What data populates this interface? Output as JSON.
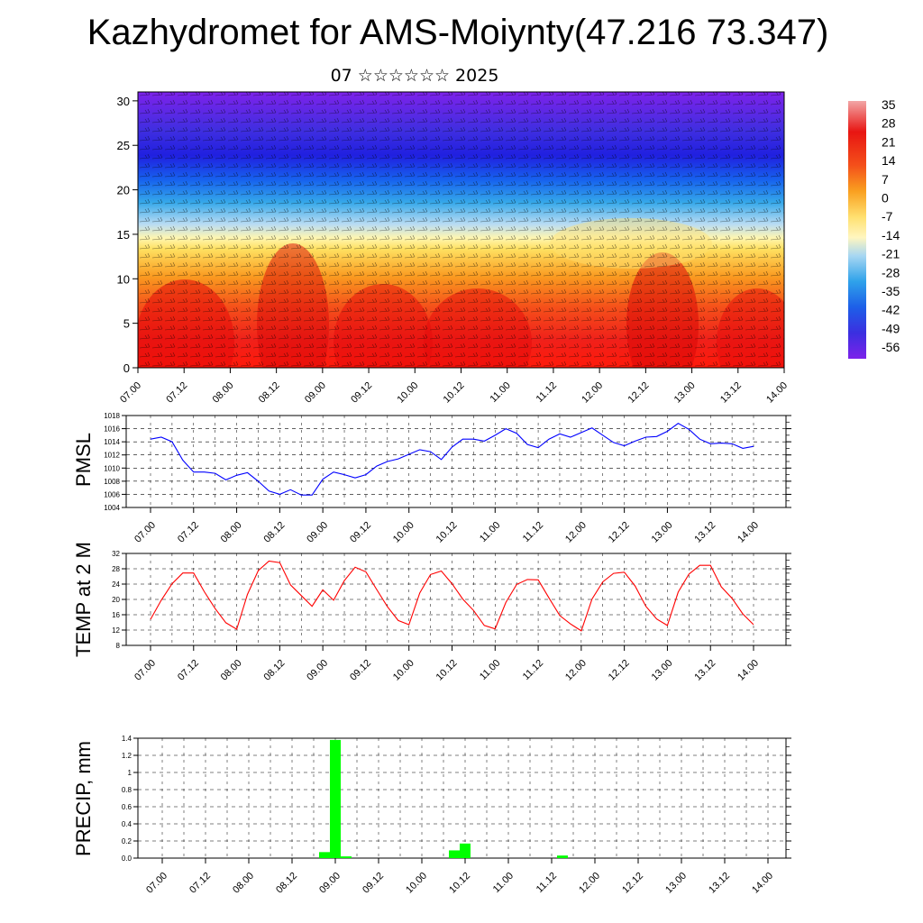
{
  "title": "Kazhydromet for AMS-Moiynty(47.216 73.347)",
  "subtitle": "07 ☆☆☆☆☆☆ 2025",
  "colors": {
    "pmsl_line": "#0000ff",
    "temp_line": "#ff0000",
    "precip_bar": "#00ff00",
    "colorbar_top": "#f2a6a6",
    "colorbar_bottom": "#7d22ea"
  },
  "chart_data": [
    {
      "type": "heatmap",
      "name": "cross-section",
      "xlabel": "",
      "ylabel": "",
      "x_tick_labels": [
        "07.00",
        "07.12",
        "08.00",
        "08.12",
        "09.00",
        "09.12",
        "10.00",
        "10.12",
        "11.00",
        "11.12",
        "12.00",
        "12.12",
        "13.00",
        "13.12",
        "14.00"
      ],
      "y_tick_labels": [
        "0",
        "5",
        "10",
        "15",
        "20",
        "25",
        "30"
      ],
      "ylim": [
        0,
        31
      ],
      "colorbar_labels": [
        "35",
        "28",
        "21",
        "14",
        "7",
        "0",
        "-7",
        "-14",
        "-21",
        "-28",
        "-35",
        "-42",
        "-49",
        "-56"
      ],
      "overlay": "wind barbs"
    },
    {
      "type": "line",
      "name": "PMSL",
      "ylabel": "PMSL",
      "ylim": [
        1004,
        1018
      ],
      "y_tick_labels": [
        "1004",
        "1006",
        "1008",
        "1010",
        "1012",
        "1014",
        "1016",
        "1018"
      ],
      "x_tick_labels": [
        "07.00",
        "07.12",
        "08.00",
        "08.12",
        "09.00",
        "09.12",
        "10.00",
        "10.12",
        "11.00",
        "11.12",
        "12.00",
        "12.12",
        "13.00",
        "13.12",
        "14.00"
      ],
      "x": [
        0,
        3,
        6,
        9,
        12,
        15,
        18,
        21,
        24,
        27,
        30,
        33,
        36,
        39,
        42,
        45,
        48,
        51,
        54,
        57,
        60,
        63,
        66,
        69,
        72,
        75,
        78,
        81,
        84,
        87,
        90,
        93,
        96,
        99,
        102,
        105,
        108,
        111,
        114,
        117,
        120,
        123,
        126,
        129,
        132,
        135,
        138,
        141,
        144,
        147,
        150,
        153,
        156,
        159,
        162,
        165,
        168
      ],
      "values": [
        1014.4,
        1014.7,
        1014.0,
        1011.2,
        1009.4,
        1009.4,
        1009.2,
        1008.2,
        1008.9,
        1009.3,
        1008.0,
        1006.5,
        1006.0,
        1006.7,
        1005.9,
        1005.9,
        1008.3,
        1009.4,
        1009.0,
        1008.5,
        1009.0,
        1010.3,
        1011.0,
        1011.4,
        1012.1,
        1012.8,
        1012.5,
        1011.3,
        1013.2,
        1014.4,
        1014.4,
        1014.1,
        1015.0,
        1016.0,
        1015.3,
        1013.6,
        1013.1,
        1014.4,
        1015.2,
        1014.7,
        1015.4,
        1016.1,
        1015.0,
        1013.9,
        1013.4,
        1014.1,
        1014.7,
        1014.8,
        1015.6,
        1016.8,
        1015.9,
        1014.4,
        1013.7,
        1013.8,
        1013.7,
        1013.0,
        1013.3
      ],
      "grid": true
    },
    {
      "type": "line",
      "name": "TEMP at 2 M",
      "ylabel": "TEMP at 2 M",
      "ylim": [
        8,
        32
      ],
      "y_tick_labels": [
        "8",
        "12",
        "16",
        "20",
        "24",
        "28",
        "32"
      ],
      "x_tick_labels": [
        "07.00",
        "07.12",
        "08.00",
        "08.12",
        "09.00",
        "09.12",
        "10.00",
        "10.12",
        "11.00",
        "11.12",
        "12.00",
        "12.12",
        "13.00",
        "13.12",
        "14.00"
      ],
      "x": [
        0,
        3,
        6,
        9,
        12,
        15,
        18,
        21,
        24,
        27,
        30,
        33,
        36,
        39,
        42,
        45,
        48,
        51,
        54,
        57,
        60,
        63,
        66,
        69,
        72,
        75,
        78,
        81,
        84,
        87,
        90,
        93,
        96,
        99,
        102,
        105,
        108,
        111,
        114,
        117,
        120,
        123,
        126,
        129,
        132,
        135,
        138,
        141,
        144,
        147,
        150,
        153,
        156,
        159,
        162,
        165,
        168
      ],
      "values": [
        14.8,
        19.8,
        24.1,
        26.9,
        26.9,
        22.0,
        17.6,
        13.9,
        12.2,
        21.3,
        27.5,
        30.0,
        29.6,
        23.8,
        21.0,
        18.2,
        22.5,
        19.8,
        24.9,
        28.4,
        27.2,
        22.6,
        18.1,
        14.5,
        13.4,
        21.7,
        26.5,
        27.4,
        24.1,
        20.1,
        17.1,
        13.2,
        12.3,
        19.2,
        23.9,
        25.2,
        25.1,
        20.4,
        15.8,
        13.6,
        11.8,
        20.1,
        24.6,
        26.8,
        27.1,
        23.5,
        18.2,
        14.9,
        13.2,
        21.9,
        26.6,
        28.9,
        28.9,
        23.3,
        20.3,
        16.2,
        13.4
      ],
      "grid": true
    },
    {
      "type": "bar",
      "name": "PRECIP, mm",
      "ylabel": "PRECIP, mm",
      "ylim": [
        0,
        1.4
      ],
      "y_tick_labels": [
        "0.0",
        "0.2",
        "0.4",
        "0.6",
        "0.8",
        "1",
        "1.2",
        "1.4"
      ],
      "x_tick_labels": [
        "07.00",
        "07.12",
        "08.00",
        "08.12",
        "09.00",
        "09.12",
        "10.00",
        "10.12",
        "11.00",
        "11.12",
        "12.00",
        "12.12",
        "13.00",
        "13.12",
        "14.00"
      ],
      "x": [
        45,
        48,
        51,
        81,
        84,
        111
      ],
      "values": [
        0.07,
        1.38,
        0.02,
        0.09,
        0.17,
        0.03
      ],
      "grid": true
    }
  ]
}
